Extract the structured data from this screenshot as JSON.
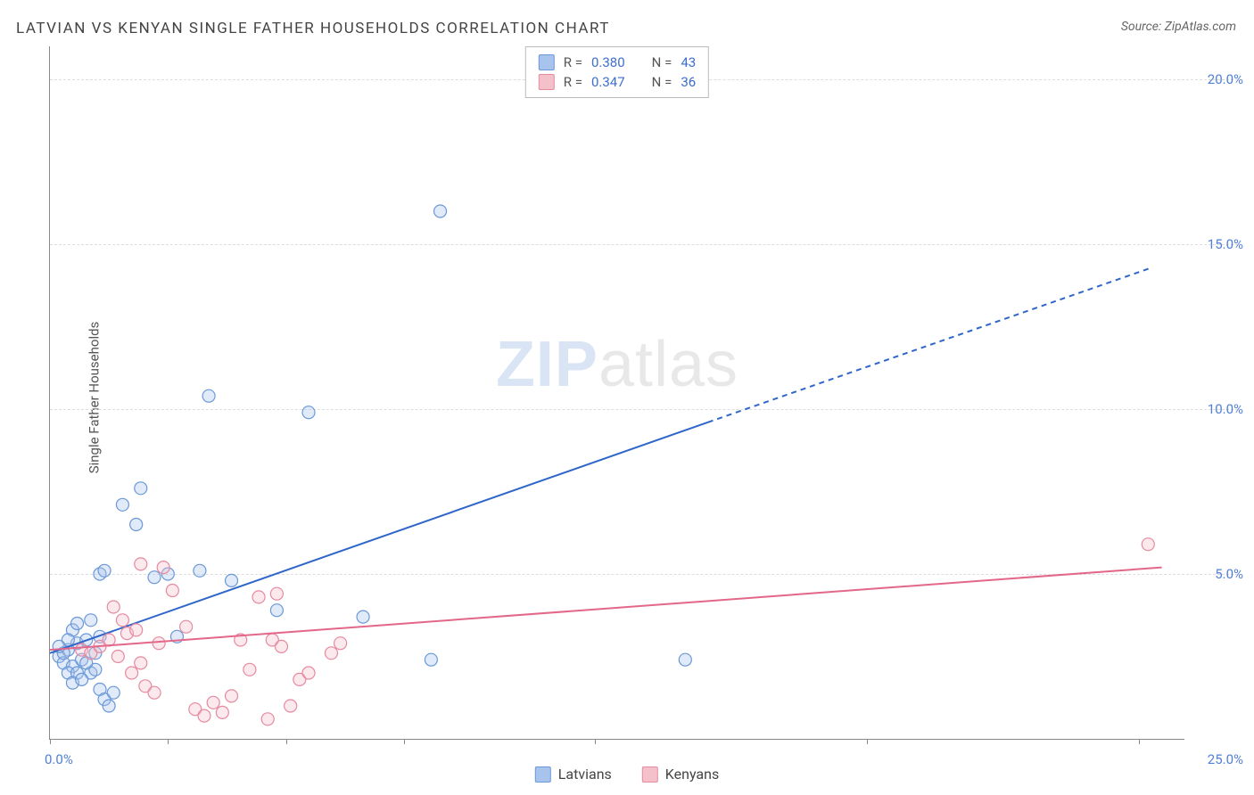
{
  "title": "LATVIAN VS KENYAN SINGLE FATHER HOUSEHOLDS CORRELATION CHART",
  "source_label": "Source:",
  "source_value": "ZipAtlas.com",
  "y_axis_label": "Single Father Households",
  "watermark_bold": "ZIP",
  "watermark_light": "atlas",
  "chart": {
    "type": "scatter",
    "xlim": [
      0,
      25
    ],
    "ylim": [
      0,
      21
    ],
    "x_origin_label": "0.0%",
    "x_max_label": "25.0%",
    "x_ticks": [
      0,
      2.6,
      5.2,
      7.8,
      12,
      18,
      24
    ],
    "y_ticks": [
      5,
      10,
      15,
      20
    ],
    "y_tick_labels": [
      "5.0%",
      "10.0%",
      "15.0%",
      "20.0%"
    ],
    "grid_color": "#dddddd",
    "axis_color": "#888888",
    "tick_label_color": "#4f7fd6",
    "background_color": "#ffffff",
    "marker_radius": 7,
    "series": [
      {
        "name": "Latvians",
        "color_fill": "#a9c4ec",
        "color_stroke": "#6a98d8",
        "R": "0.380",
        "N": "43",
        "trend": {
          "x1": 0,
          "y1": 2.6,
          "x2": 14.5,
          "y2": 9.6,
          "ext_x2": 24.3,
          "ext_y2": 14.3,
          "color": "#2f66c9",
          "width": 2,
          "dash_ext": "6 5"
        },
        "points": [
          [
            0.2,
            2.5
          ],
          [
            0.3,
            2.3
          ],
          [
            0.4,
            2.7
          ],
          [
            0.5,
            2.2
          ],
          [
            0.6,
            2.9
          ],
          [
            0.7,
            2.4
          ],
          [
            0.8,
            3.0
          ],
          [
            0.9,
            2.0
          ],
          [
            1.0,
            2.6
          ],
          [
            1.1,
            1.5
          ],
          [
            1.2,
            1.2
          ],
          [
            1.3,
            1.0
          ],
          [
            1.4,
            1.4
          ],
          [
            0.5,
            3.3
          ],
          [
            0.6,
            3.5
          ],
          [
            0.9,
            3.6
          ],
          [
            1.1,
            5.0
          ],
          [
            1.2,
            5.1
          ],
          [
            1.6,
            7.1
          ],
          [
            1.9,
            6.5
          ],
          [
            2.0,
            7.6
          ],
          [
            2.3,
            4.9
          ],
          [
            2.6,
            5.0
          ],
          [
            2.8,
            3.1
          ],
          [
            3.3,
            5.1
          ],
          [
            4.0,
            4.8
          ],
          [
            3.5,
            10.4
          ],
          [
            5.0,
            3.9
          ],
          [
            6.9,
            3.7
          ],
          [
            8.4,
            2.4
          ],
          [
            8.6,
            16.0
          ],
          [
            5.7,
            9.9
          ],
          [
            14.0,
            2.4
          ],
          [
            0.4,
            2.0
          ],
          [
            0.6,
            2.0
          ],
          [
            0.5,
            1.7
          ],
          [
            0.7,
            1.8
          ],
          [
            0.3,
            2.6
          ],
          [
            1.0,
            2.1
          ],
          [
            0.8,
            2.3
          ],
          [
            0.4,
            3.0
          ],
          [
            1.1,
            3.1
          ],
          [
            0.2,
            2.8
          ]
        ]
      },
      {
        "name": "Kenyans",
        "color_fill": "#f4c0ca",
        "color_stroke": "#e68aa0",
        "R": "0.347",
        "N": "36",
        "trend": {
          "x1": 0,
          "y1": 2.7,
          "x2": 24.5,
          "y2": 5.2,
          "color": "#e26788",
          "width": 2
        },
        "points": [
          [
            0.7,
            2.7
          ],
          [
            0.9,
            2.6
          ],
          [
            1.1,
            2.8
          ],
          [
            1.3,
            3.0
          ],
          [
            1.5,
            2.5
          ],
          [
            1.7,
            3.2
          ],
          [
            1.9,
            3.3
          ],
          [
            2.1,
            1.6
          ],
          [
            2.3,
            1.4
          ],
          [
            2.5,
            5.2
          ],
          [
            2.7,
            4.5
          ],
          [
            3.0,
            3.4
          ],
          [
            3.2,
            0.9
          ],
          [
            3.4,
            0.7
          ],
          [
            3.6,
            1.1
          ],
          [
            3.8,
            0.8
          ],
          [
            4.0,
            1.3
          ],
          [
            4.2,
            3.0
          ],
          [
            4.4,
            2.1
          ],
          [
            4.6,
            4.3
          ],
          [
            4.8,
            0.6
          ],
          [
            5.0,
            4.4
          ],
          [
            5.3,
            1.0
          ],
          [
            1.8,
            2.0
          ],
          [
            2.0,
            2.3
          ],
          [
            2.4,
            2.9
          ],
          [
            1.6,
            3.6
          ],
          [
            1.4,
            4.0
          ],
          [
            2.0,
            5.3
          ],
          [
            4.9,
            3.0
          ],
          [
            5.1,
            2.8
          ],
          [
            5.5,
            1.8
          ],
          [
            5.7,
            2.0
          ],
          [
            6.2,
            2.6
          ],
          [
            6.4,
            2.9
          ],
          [
            24.2,
            5.9
          ]
        ]
      }
    ]
  },
  "stats_labels": {
    "R": "R =",
    "N": "N ="
  },
  "legend_bottom": [
    "Latvians",
    "Kenyans"
  ]
}
